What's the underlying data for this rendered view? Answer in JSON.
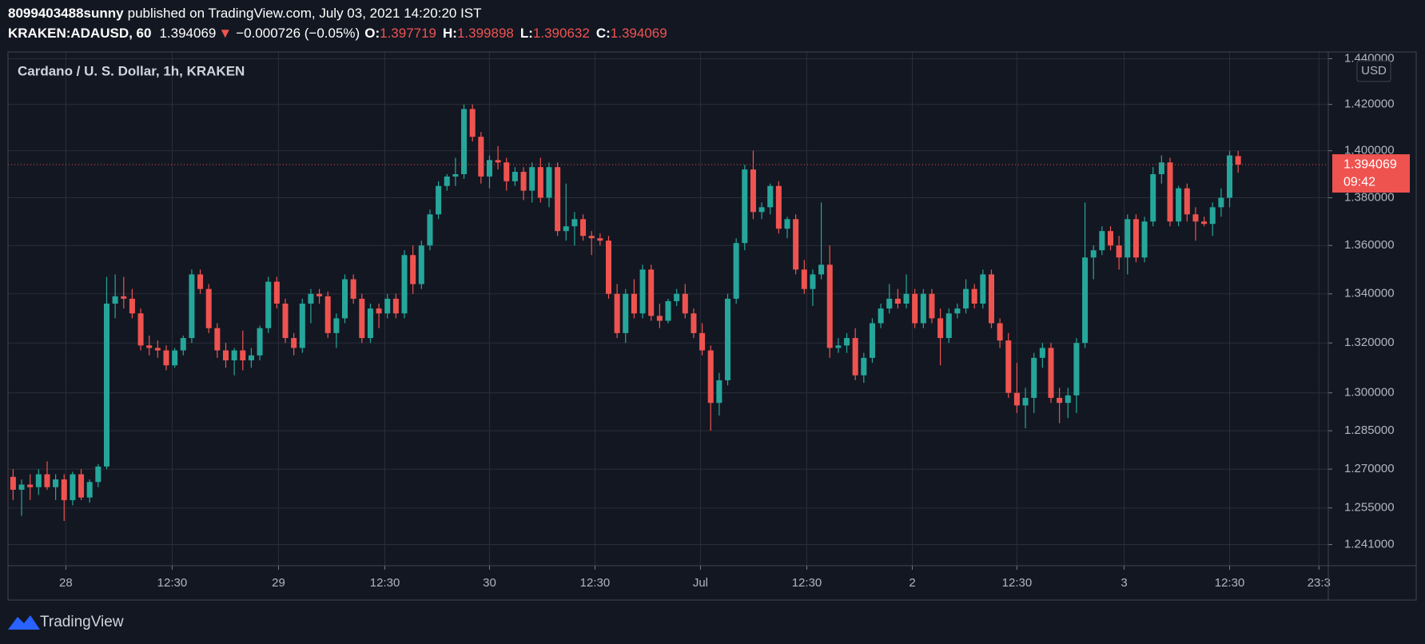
{
  "header": {
    "user": "8099403488sunny",
    "published": "published on TradingView.com, July 03, 2021 14:20:20 IST",
    "symbol": "KRAKEN:ADAUSD, 60",
    "arrow": "▼",
    "change": "−0.000726 (−0.05%)",
    "o_label": "O:",
    "h_label": "H:",
    "l_label": "L:",
    "c_label": "C:"
  },
  "footer": {
    "brand": "TradingView"
  },
  "chart_data": {
    "type": "candlestick",
    "title": "Cardano / U. S. Dollar, 1h, KRAKEN",
    "currency": "USD",
    "countdown": "09:42",
    "up_color": "#26a69a",
    "down_color": "#ef5350",
    "log_scale": true,
    "grid": true,
    "xlim": [
      -0.6,
      154.6
    ],
    "xticks": [
      {
        "value": 6.2,
        "label": "28"
      },
      {
        "value": 18.7,
        "label": "12:30"
      },
      {
        "value": 31.2,
        "label": "29"
      },
      {
        "value": 43.7,
        "label": "12:30"
      },
      {
        "value": 56,
        "label": "30"
      },
      {
        "value": 68.4,
        "label": "12:30"
      },
      {
        "value": 80.8,
        "label": "Jul"
      },
      {
        "value": 93.3,
        "label": "12:30"
      },
      {
        "value": 105.7,
        "label": "2"
      },
      {
        "value": 118,
        "label": "12:30"
      },
      {
        "value": 130.6,
        "label": "3"
      },
      {
        "value": 143,
        "label": "12:30"
      },
      {
        "value": 153.5,
        "label": "23:3"
      }
    ],
    "ylim": [
      1.233,
      1.443
    ],
    "yticks": [
      {
        "value": 1.44,
        "label": "1.440000"
      },
      {
        "value": 1.42,
        "label": "1.420000"
      },
      {
        "value": 1.4,
        "label": "1.400000"
      },
      {
        "value": 1.38,
        "label": "1.380000"
      },
      {
        "value": 1.36,
        "label": "1.360000"
      },
      {
        "value": 1.34,
        "label": "1.340000"
      },
      {
        "value": 1.32,
        "label": "1.320000"
      },
      {
        "value": 1.3,
        "label": "1.300000"
      },
      {
        "value": 1.285,
        "label": "1.285000"
      },
      {
        "value": 1.27,
        "label": "1.270000"
      },
      {
        "value": 1.255,
        "label": "1.255000"
      },
      {
        "value": 1.241,
        "label": "1.241000"
      }
    ],
    "open": [
      1.267,
      1.262,
      1.264,
      1.263,
      1.268,
      1.263,
      1.266,
      1.258,
      1.268,
      1.259,
      1.265,
      1.271,
      1.336,
      1.339,
      1.338,
      1.332,
      1.319,
      1.318,
      1.317,
      1.311,
      1.317,
      1.322,
      1.348,
      1.342,
      1.326,
      1.317,
      1.313,
      1.317,
      1.313,
      1.315,
      1.326,
      1.345,
      1.336,
      1.322,
      1.318,
      1.336,
      1.34,
      1.339,
      1.324,
      1.33,
      1.346,
      1.338,
      1.322,
      1.334,
      1.332,
      1.338,
      1.332,
      1.356,
      1.344,
      1.36,
      1.373,
      1.385,
      1.389,
      1.39,
      1.418,
      1.406,
      1.389,
      1.396,
      1.395,
      1.387,
      1.391,
      1.383,
      1.393,
      1.38,
      1.393,
      1.366,
      1.368,
      1.371,
      1.364,
      1.363,
      1.362,
      1.34,
      1.324,
      1.34,
      1.332,
      1.35,
      1.331,
      1.329,
      1.337,
      1.34,
      1.332,
      1.324,
      1.317,
      1.296,
      1.305,
      1.338,
      1.361,
      1.392,
      1.374,
      1.376,
      1.385,
      1.367,
      1.371,
      1.35,
      1.342,
      1.348,
      1.352,
      1.318,
      1.319,
      1.322,
      1.307,
      1.314,
      1.328,
      1.334,
      1.338,
      1.336,
      1.34,
      1.328,
      1.34,
      1.33,
      1.322,
      1.332,
      1.334,
      1.342,
      1.336,
      1.348,
      1.328,
      1.321,
      1.3,
      1.295,
      1.298,
      1.314,
      1.318,
      1.298,
      1.296,
      1.299,
      1.32,
      1.355,
      1.358,
      1.366,
      1.36,
      1.355,
      1.371,
      1.355,
      1.37,
      1.39,
      1.395,
      1.37,
      1.384,
      1.373,
      1.37,
      1.369,
      1.376,
      1.38,
      1.397719
    ],
    "high": [
      1.27,
      1.266,
      1.268,
      1.27,
      1.273,
      1.268,
      1.268,
      1.269,
      1.27,
      1.266,
      1.272,
      1.347,
      1.348,
      1.347,
      1.342,
      1.334,
      1.323,
      1.321,
      1.319,
      1.318,
      1.323,
      1.35,
      1.35,
      1.344,
      1.328,
      1.32,
      1.318,
      1.325,
      1.318,
      1.327,
      1.347,
      1.347,
      1.338,
      1.324,
      1.338,
      1.342,
      1.342,
      1.341,
      1.332,
      1.348,
      1.348,
      1.34,
      1.336,
      1.336,
      1.34,
      1.34,
      1.358,
      1.36,
      1.362,
      1.375,
      1.387,
      1.39,
      1.397,
      1.42,
      1.42,
      1.408,
      1.398,
      1.402,
      1.397,
      1.393,
      1.393,
      1.395,
      1.397,
      1.395,
      1.395,
      1.386,
      1.374,
      1.373,
      1.366,
      1.365,
      1.364,
      1.344,
      1.342,
      1.346,
      1.352,
      1.352,
      1.336,
      1.338,
      1.342,
      1.344,
      1.334,
      1.328,
      1.319,
      1.308,
      1.34,
      1.363,
      1.394,
      1.4,
      1.378,
      1.386,
      1.387,
      1.372,
      1.373,
      1.354,
      1.35,
      1.378,
      1.36,
      1.322,
      1.324,
      1.326,
      1.316,
      1.33,
      1.336,
      1.344,
      1.342,
      1.348,
      1.342,
      1.342,
      1.342,
      1.334,
      1.334,
      1.336,
      1.346,
      1.344,
      1.35,
      1.35,
      1.33,
      1.324,
      1.312,
      1.302,
      1.316,
      1.32,
      1.32,
      1.302,
      1.302,
      1.322,
      1.378,
      1.36,
      1.368,
      1.368,
      1.364,
      1.373,
      1.373,
      1.372,
      1.393,
      1.398,
      1.397,
      1.385,
      1.386,
      1.376,
      1.372,
      1.378,
      1.384,
      1.4,
      1.399898
    ],
    "low": [
      1.258,
      1.252,
      1.258,
      1.26,
      1.262,
      1.258,
      1.25,
      1.256,
      1.258,
      1.257,
      1.263,
      1.27,
      1.33,
      1.334,
      1.33,
      1.317,
      1.315,
      1.314,
      1.309,
      1.31,
      1.315,
      1.32,
      1.34,
      1.324,
      1.314,
      1.31,
      1.307,
      1.309,
      1.31,
      1.313,
      1.324,
      1.334,
      1.32,
      1.315,
      1.316,
      1.328,
      1.336,
      1.322,
      1.318,
      1.328,
      1.336,
      1.32,
      1.32,
      1.326,
      1.33,
      1.33,
      1.33,
      1.34,
      1.342,
      1.358,
      1.371,
      1.383,
      1.385,
      1.388,
      1.404,
      1.386,
      1.384,
      1.392,
      1.383,
      1.385,
      1.379,
      1.378,
      1.378,
      1.376,
      1.364,
      1.362,
      1.36,
      1.362,
      1.356,
      1.36,
      1.338,
      1.322,
      1.32,
      1.33,
      1.33,
      1.329,
      1.326,
      1.328,
      1.335,
      1.33,
      1.322,
      1.315,
      1.285,
      1.291,
      1.303,
      1.336,
      1.358,
      1.371,
      1.371,
      1.373,
      1.365,
      1.363,
      1.348,
      1.34,
      1.335,
      1.346,
      1.314,
      1.316,
      1.316,
      1.305,
      1.304,
      1.312,
      1.326,
      1.332,
      1.334,
      1.334,
      1.326,
      1.326,
      1.328,
      1.311,
      1.32,
      1.33,
      1.332,
      1.334,
      1.334,
      1.326,
      1.318,
      1.298,
      1.292,
      1.286,
      1.292,
      1.31,
      1.296,
      1.288,
      1.29,
      1.292,
      1.318,
      1.346,
      1.356,
      1.358,
      1.35,
      1.348,
      1.353,
      1.353,
      1.368,
      1.386,
      1.368,
      1.368,
      1.37,
      1.362,
      1.368,
      1.364,
      1.372,
      1.376,
      1.390632
    ],
    "close": [
      1.262,
      1.264,
      1.263,
      1.268,
      1.263,
      1.266,
      1.258,
      1.268,
      1.259,
      1.265,
      1.271,
      1.336,
      1.339,
      1.338,
      1.332,
      1.319,
      1.318,
      1.317,
      1.311,
      1.317,
      1.322,
      1.348,
      1.342,
      1.326,
      1.317,
      1.313,
      1.317,
      1.313,
      1.315,
      1.326,
      1.345,
      1.336,
      1.322,
      1.318,
      1.336,
      1.34,
      1.339,
      1.324,
      1.33,
      1.346,
      1.338,
      1.322,
      1.334,
      1.332,
      1.338,
      1.332,
      1.356,
      1.344,
      1.36,
      1.373,
      1.385,
      1.389,
      1.39,
      1.418,
      1.406,
      1.389,
      1.396,
      1.395,
      1.387,
      1.391,
      1.383,
      1.393,
      1.38,
      1.393,
      1.366,
      1.368,
      1.371,
      1.364,
      1.363,
      1.362,
      1.34,
      1.324,
      1.34,
      1.332,
      1.35,
      1.331,
      1.329,
      1.337,
      1.34,
      1.332,
      1.324,
      1.317,
      1.296,
      1.305,
      1.338,
      1.361,
      1.392,
      1.374,
      1.376,
      1.385,
      1.367,
      1.371,
      1.35,
      1.342,
      1.348,
      1.352,
      1.318,
      1.319,
      1.322,
      1.307,
      1.314,
      1.328,
      1.334,
      1.338,
      1.336,
      1.34,
      1.328,
      1.34,
      1.33,
      1.322,
      1.332,
      1.334,
      1.342,
      1.336,
      1.348,
      1.328,
      1.321,
      1.3,
      1.295,
      1.298,
      1.314,
      1.318,
      1.298,
      1.296,
      1.299,
      1.32,
      1.355,
      1.358,
      1.366,
      1.36,
      1.355,
      1.371,
      1.355,
      1.37,
      1.39,
      1.395,
      1.37,
      1.384,
      1.373,
      1.37,
      1.369,
      1.376,
      1.38,
      1.398,
      1.394069
    ]
  }
}
